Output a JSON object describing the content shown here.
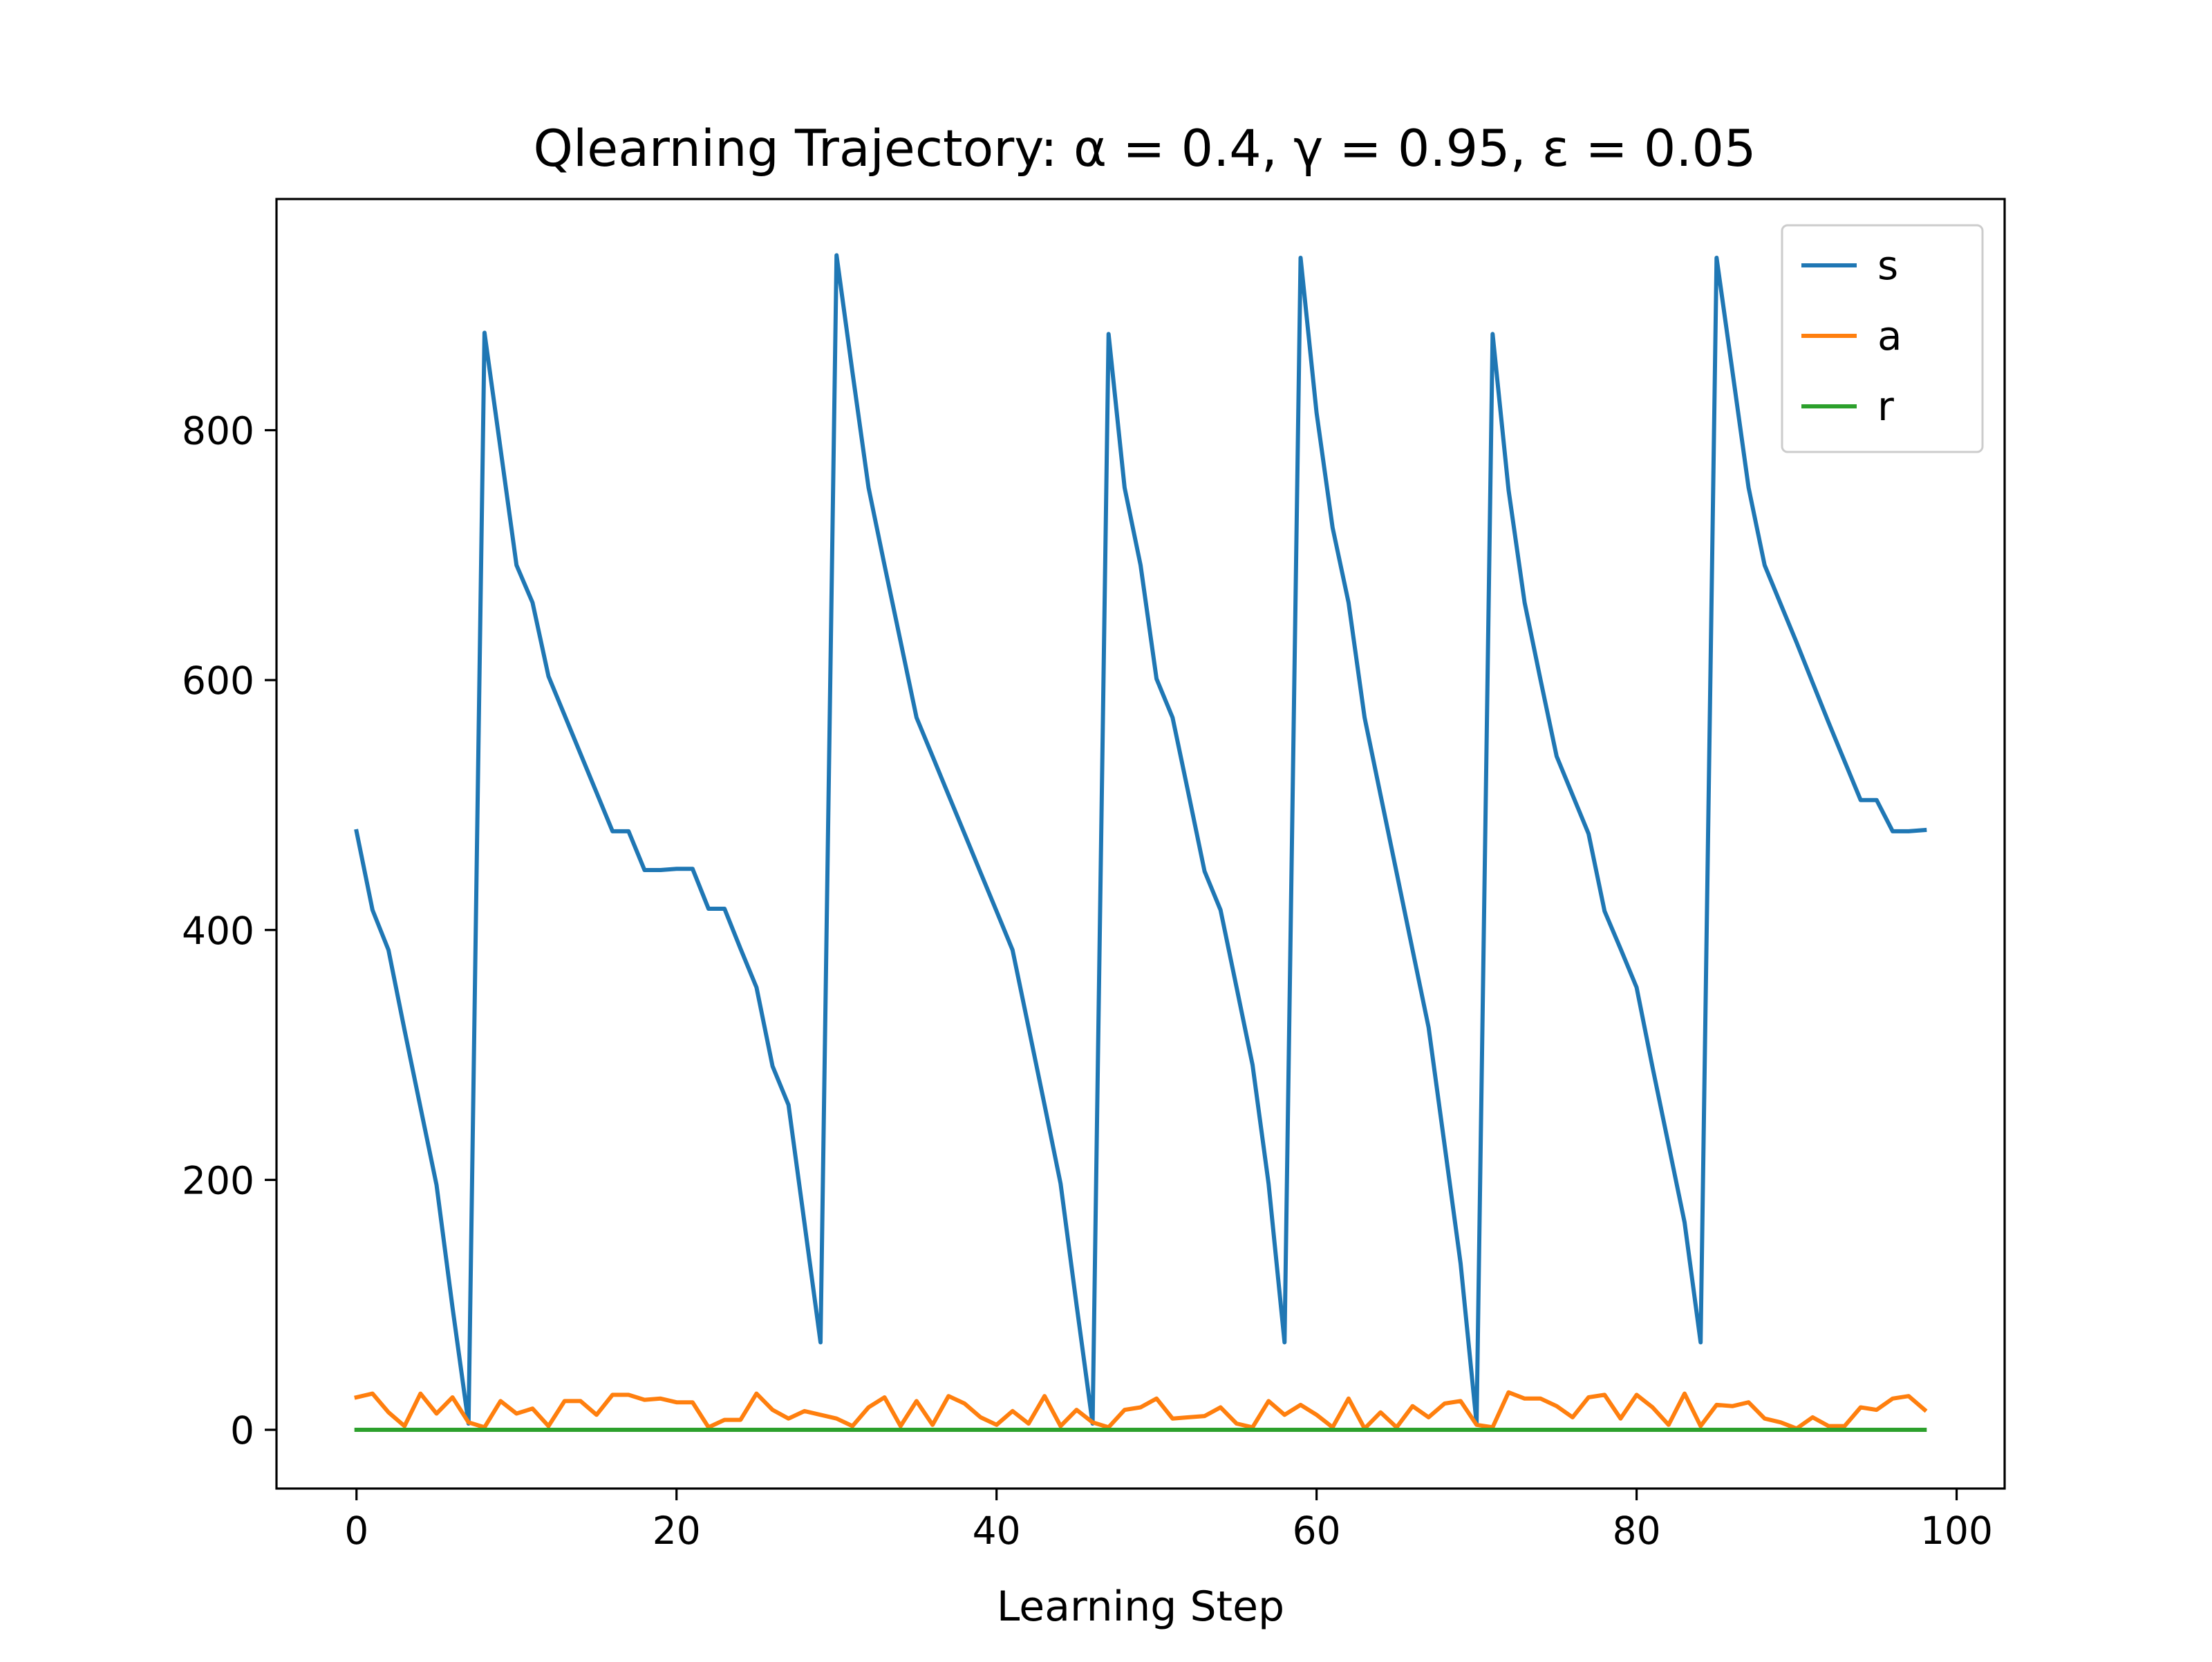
{
  "chart_data": {
    "type": "line",
    "title": "Qlearning Trajectory: α = 0.4, γ = 0.95, ε = 0.05",
    "xlabel": "Learning Step",
    "ylabel": "",
    "xlim": [
      -5,
      103
    ],
    "ylim": [
      -47,
      985
    ],
    "xticks": [
      0,
      20,
      40,
      60,
      80,
      100
    ],
    "xtick_labels": [
      "0",
      "20",
      "40",
      "60",
      "80",
      "100"
    ],
    "yticks": [
      0,
      200,
      400,
      600,
      800
    ],
    "ytick_labels": [
      "0",
      "200",
      "400",
      "600",
      "800"
    ],
    "legend": {
      "placement": "top-right",
      "entries": [
        "s",
        "a",
        "r"
      ]
    },
    "x": [
      0,
      1,
      2,
      3,
      4,
      5,
      6,
      7,
      8,
      9,
      10,
      11,
      12,
      13,
      14,
      15,
      16,
      17,
      18,
      19,
      20,
      21,
      22,
      23,
      24,
      25,
      26,
      27,
      28,
      29,
      30,
      31,
      32,
      33,
      34,
      35,
      36,
      37,
      38,
      39,
      40,
      41,
      42,
      43,
      44,
      45,
      46,
      47,
      48,
      49,
      50,
      51,
      52,
      53,
      54,
      55,
      56,
      57,
      58,
      59,
      60,
      61,
      62,
      63,
      64,
      65,
      66,
      67,
      68,
      69,
      70,
      71,
      72,
      73,
      74,
      75,
      76,
      77,
      78,
      79,
      80,
      81,
      82,
      83,
      84,
      85,
      86,
      87,
      88,
      89,
      90,
      91,
      92,
      93,
      94,
      95,
      96,
      97,
      98
    ],
    "series": [
      {
        "name": "s",
        "color": "#1f77b4",
        "values": [
          479,
          416,
          384,
          320,
          258,
          196,
          98,
          5,
          878,
          785,
          692,
          662,
          603,
          572,
          541,
          510,
          479,
          479,
          448,
          448,
          449,
          449,
          417,
          417,
          385,
          354,
          291,
          260,
          165,
          70,
          940,
          846,
          754,
          692,
          631,
          570,
          539,
          508,
          477,
          446,
          415,
          384,
          322,
          260,
          197,
          100,
          5,
          877,
          754,
          692,
          601,
          570,
          509,
          447,
          416,
          354,
          292,
          197,
          70,
          938,
          814,
          722,
          662,
          570,
          508,
          446,
          384,
          322,
          228,
          133,
          5,
          877,
          752,
          662,
          600,
          539,
          508,
          477,
          415,
          385,
          354,
          290,
          228,
          166,
          70,
          938,
          846,
          754,
          692,
          661,
          630,
          598,
          566,
          535,
          504,
          504,
          479,
          479,
          480
        ]
      },
      {
        "name": "a",
        "color": "#ff7f0e",
        "values": [
          26,
          29,
          14,
          3,
          29,
          13,
          26,
          6,
          2,
          23,
          13,
          17,
          3,
          23,
          23,
          12,
          28,
          28,
          24,
          25,
          22,
          22,
          2,
          8,
          8,
          29,
          16,
          9,
          15,
          12,
          9,
          3,
          18,
          26,
          3,
          23,
          4,
          27,
          21,
          10,
          4,
          15,
          5,
          27,
          3,
          16,
          6,
          2,
          16,
          18,
          25,
          9,
          10,
          11,
          18,
          5,
          2,
          23,
          12,
          20,
          12,
          2,
          25,
          1,
          14,
          2,
          19,
          10,
          21,
          23,
          4,
          2,
          30,
          25,
          25,
          19,
          10,
          26,
          28,
          9,
          28,
          18,
          4,
          29,
          3,
          20,
          19,
          22,
          9,
          6,
          1,
          10,
          3,
          3,
          18,
          16,
          25,
          27,
          16
        ]
      },
      {
        "name": "r",
        "color": "#2ca02c",
        "values": [
          0,
          0,
          0,
          0,
          0,
          0,
          0,
          0,
          0,
          0,
          0,
          0,
          0,
          0,
          0,
          0,
          0,
          0,
          0,
          0,
          0,
          0,
          0,
          0,
          0,
          0,
          0,
          0,
          0,
          0,
          0,
          0,
          0,
          0,
          0,
          0,
          0,
          0,
          0,
          0,
          0,
          0,
          0,
          0,
          0,
          0,
          0,
          0,
          0,
          0,
          0,
          0,
          0,
          0,
          0,
          0,
          0,
          0,
          0,
          0,
          0,
          0,
          0,
          0,
          0,
          0,
          0,
          0,
          0,
          0,
          0,
          0,
          0,
          0,
          0,
          0,
          0,
          0,
          0,
          0,
          0,
          0,
          0,
          0,
          0,
          0,
          0,
          0,
          0,
          0,
          0,
          0,
          0,
          0,
          0,
          0,
          0,
          0,
          0
        ]
      }
    ]
  }
}
